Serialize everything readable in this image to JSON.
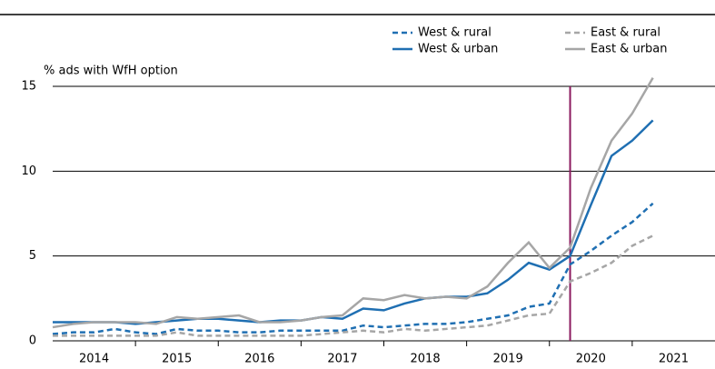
{
  "chart_data": {
    "type": "line",
    "y_label": "% ads with WfH option",
    "x": [
      2014.0,
      2014.25,
      2014.5,
      2014.75,
      2015.0,
      2015.25,
      2015.5,
      2015.75,
      2016.0,
      2016.25,
      2016.5,
      2016.75,
      2017.0,
      2017.25,
      2017.5,
      2017.75,
      2018.0,
      2018.25,
      2018.5,
      2018.75,
      2019.0,
      2019.25,
      2019.5,
      2019.75,
      2020.0,
      2020.25,
      2020.5,
      2020.75,
      2021.0,
      2021.25
    ],
    "series": [
      {
        "name": "West & rural",
        "color": "#1f6fb2",
        "style": "dashed",
        "values": [
          0.4,
          0.5,
          0.5,
          0.7,
          0.5,
          0.4,
          0.7,
          0.6,
          0.6,
          0.5,
          0.5,
          0.6,
          0.6,
          0.6,
          0.6,
          0.9,
          0.8,
          0.9,
          1.0,
          1.0,
          1.1,
          1.3,
          1.5,
          2.0,
          2.2,
          4.5,
          5.3,
          6.2,
          7.0,
          8.1
        ]
      },
      {
        "name": "West & urban",
        "color": "#1f6fb2",
        "style": "solid",
        "values": [
          1.1,
          1.1,
          1.1,
          1.1,
          1.0,
          1.1,
          1.2,
          1.3,
          1.3,
          1.2,
          1.1,
          1.2,
          1.2,
          1.4,
          1.3,
          1.9,
          1.8,
          2.2,
          2.5,
          2.6,
          2.6,
          2.8,
          3.6,
          4.6,
          4.2,
          5.0,
          8.0,
          10.9,
          11.8,
          13.0
        ]
      },
      {
        "name": "East & rural",
        "color": "#a6a6a6",
        "style": "dashed",
        "values": [
          0.3,
          0.3,
          0.3,
          0.3,
          0.3,
          0.3,
          0.5,
          0.3,
          0.3,
          0.3,
          0.3,
          0.3,
          0.3,
          0.4,
          0.5,
          0.6,
          0.5,
          0.7,
          0.6,
          0.7,
          0.8,
          0.9,
          1.2,
          1.5,
          1.6,
          3.5,
          4.0,
          4.6,
          5.6,
          6.2
        ]
      },
      {
        "name": "East & urban",
        "color": "#a6a6a6",
        "style": "solid",
        "values": [
          0.8,
          1.0,
          1.1,
          1.1,
          1.1,
          1.0,
          1.4,
          1.3,
          1.4,
          1.5,
          1.1,
          1.1,
          1.2,
          1.4,
          1.5,
          2.5,
          2.4,
          2.7,
          2.5,
          2.6,
          2.5,
          3.2,
          4.6,
          5.8,
          4.3,
          5.5,
          9.0,
          11.8,
          13.4,
          15.5
        ]
      }
    ],
    "xlim": [
      2014,
      2022
    ],
    "xticks": [
      {
        "value": 2014.5,
        "label": "2014"
      },
      {
        "value": 2015.5,
        "label": "2015"
      },
      {
        "value": 2016.5,
        "label": "2016"
      },
      {
        "value": 2017.5,
        "label": "2017"
      },
      {
        "value": 2018.5,
        "label": "2018"
      },
      {
        "value": 2019.5,
        "label": "2019"
      },
      {
        "value": 2020.5,
        "label": "2020"
      },
      {
        "value": 2021.5,
        "label": "2021"
      }
    ],
    "ylim": [
      0,
      15
    ],
    "yticks": [
      0,
      5,
      10,
      15
    ],
    "grid": true,
    "vline": {
      "value": 2020.25,
      "color": "#8b1a5e"
    }
  }
}
